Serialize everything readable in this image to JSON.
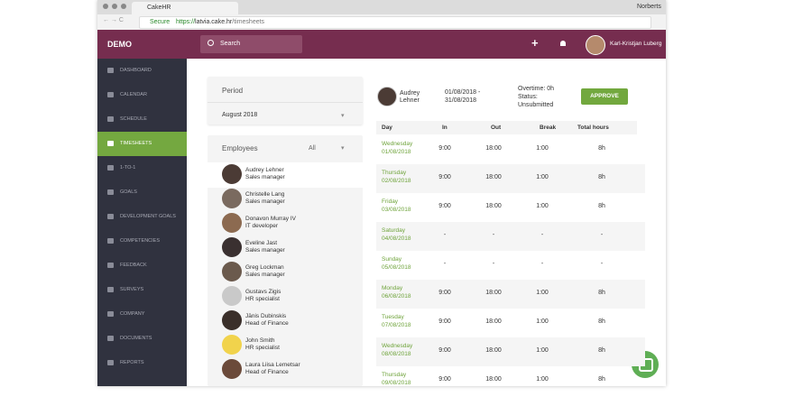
{
  "browser": {
    "tab_title": "CakeHR",
    "profile": "Norberts",
    "secure": "Secure",
    "url_protocol": "https://",
    "url_host": "latvia.cake.hr",
    "url_path": "/timesheets"
  },
  "header": {
    "brand": "DEMO",
    "search": "Search",
    "user": "Karl-Kristjan Luberg"
  },
  "sidebar": {
    "active": 3,
    "items": [
      "DASHBOARD",
      "CALENDAR",
      "SCHEDULE",
      "TIMESHEETS",
      "1-TO-1",
      "GOALS",
      "DEVELOPMENT GOALS",
      "COMPETENCIES",
      "FEEDBACK",
      "SURVEYS",
      "COMPANY",
      "DOCUMENTS",
      "REPORTS"
    ]
  },
  "period": {
    "label": "Period",
    "value": "August 2018"
  },
  "employees": {
    "label": "Employees",
    "filter": "All",
    "items": [
      {
        "name": "Audrey Lehner",
        "role": "Sales manager"
      },
      {
        "name": "Christelle Lang",
        "role": "Sales manager"
      },
      {
        "name": "Donavon Murray IV",
        "role": "IT developer"
      },
      {
        "name": "Eveline Jast",
        "role": "Sales manager"
      },
      {
        "name": "Greg Lockman",
        "role": "Sales manager"
      },
      {
        "name": "Gustavs Zigis",
        "role": "HR specialist"
      },
      {
        "name": "Jānis Dubinskis",
        "role": "Head of Finance"
      },
      {
        "name": "John Smith",
        "role": "HR specialist"
      },
      {
        "name": "Laura Liisa Lemetsar",
        "role": "Head of Finance"
      }
    ]
  },
  "timesheet": {
    "first_name": "Audrey",
    "last_name": "Lehner",
    "date_from": "01/08/2018 -",
    "date_to": "31/08/2018",
    "overtime": "Overtime: 0h",
    "status_label": "Status:",
    "status": "Unsubmitted",
    "button": "APPROVE",
    "columns": [
      "Day",
      "In",
      "Out",
      "Break",
      "Total hours"
    ],
    "rows": [
      {
        "day": "Wednesday",
        "date": "01/08/2018",
        "in": "9:00",
        "out": "18:00",
        "break": "1:00",
        "total": "8h"
      },
      {
        "day": "Thursday",
        "date": "02/08/2018",
        "in": "9:00",
        "out": "18:00",
        "break": "1:00",
        "total": "8h"
      },
      {
        "day": "Friday",
        "date": "03/08/2018",
        "in": "9:00",
        "out": "18:00",
        "break": "1:00",
        "total": "8h"
      },
      {
        "day": "Saturday",
        "date": "04/08/2018",
        "in": "-",
        "out": "-",
        "break": "-",
        "total": "-"
      },
      {
        "day": "Sunday",
        "date": "05/08/2018",
        "in": "-",
        "out": "-",
        "break": "-",
        "total": "-"
      },
      {
        "day": "Monday",
        "date": "06/08/2018",
        "in": "9:00",
        "out": "18:00",
        "break": "1:00",
        "total": "8h"
      },
      {
        "day": "Tuesday",
        "date": "07/08/2018",
        "in": "9:00",
        "out": "18:00",
        "break": "1:00",
        "total": "8h"
      },
      {
        "day": "Wednesday",
        "date": "08/08/2018",
        "in": "9:00",
        "out": "18:00",
        "break": "1:00",
        "total": "8h"
      },
      {
        "day": "Thursday",
        "date": "09/08/2018",
        "in": "9:00",
        "out": "18:00",
        "break": "1:00",
        "total": "8h"
      }
    ]
  }
}
